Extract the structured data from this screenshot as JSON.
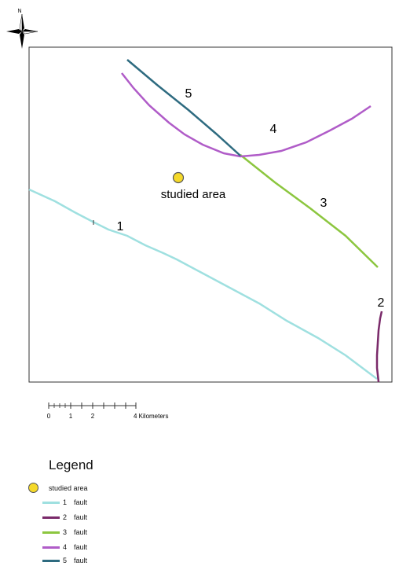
{
  "north_arrow": {
    "label": "N"
  },
  "map": {
    "studied_area_label": "studied area",
    "fault_labels": [
      "1",
      "2",
      "3",
      "4",
      "5"
    ]
  },
  "scale_bar": {
    "ticks": [
      "0",
      "1",
      "2",
      "4 Kilometers"
    ]
  },
  "legend": {
    "title": "Legend",
    "studied_area": "studied area",
    "items": [
      {
        "num": "1",
        "label": "fault",
        "color": "#9fe0e0"
      },
      {
        "num": "2",
        "label": "fault",
        "color": "#7a2a6a"
      },
      {
        "num": "3",
        "label": "fault",
        "color": "#8cc63f"
      },
      {
        "num": "4",
        "label": "fault",
        "color": "#b05cc8"
      },
      {
        "num": "5",
        "label": "fault",
        "color": "#2e6b80"
      }
    ]
  },
  "colors": {
    "fault_1": "#9fe0e0",
    "fault_2": "#7a2a6a",
    "fault_3": "#8cc63f",
    "fault_4": "#b05cc8",
    "fault_5": "#2e6b80",
    "studied_area": "#f5d92a"
  }
}
